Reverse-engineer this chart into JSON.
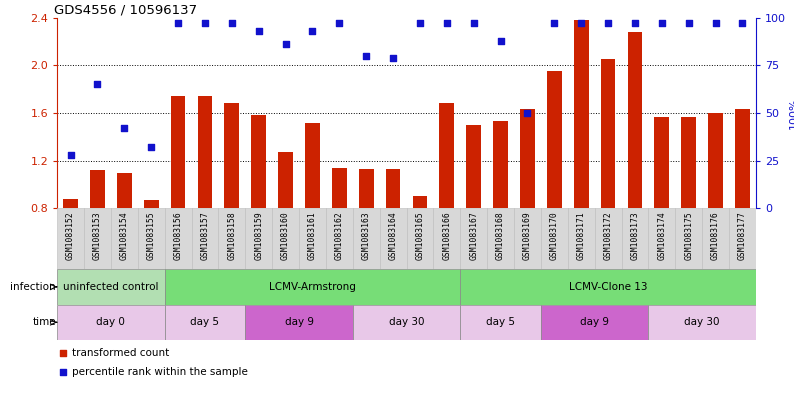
{
  "title": "GDS4556 / 10596137",
  "samples": [
    "GSM1083152",
    "GSM1083153",
    "GSM1083154",
    "GSM1083155",
    "GSM1083156",
    "GSM1083157",
    "GSM1083158",
    "GSM1083159",
    "GSM1083160",
    "GSM1083161",
    "GSM1083162",
    "GSM1083163",
    "GSM1083164",
    "GSM1083165",
    "GSM1083166",
    "GSM1083167",
    "GSM1083168",
    "GSM1083169",
    "GSM1083170",
    "GSM1083171",
    "GSM1083172",
    "GSM1083173",
    "GSM1083174",
    "GSM1083175",
    "GSM1083176",
    "GSM1083177"
  ],
  "bar_values": [
    0.88,
    1.12,
    1.1,
    0.87,
    1.74,
    1.74,
    1.68,
    1.58,
    1.27,
    1.52,
    1.14,
    1.13,
    1.13,
    0.9,
    1.68,
    1.5,
    1.53,
    1.63,
    1.95,
    2.38,
    2.05,
    2.28,
    1.57,
    1.57,
    1.6,
    1.63
  ],
  "scatter_values_pct": [
    28,
    65,
    42,
    32,
    97,
    97,
    97,
    93,
    86,
    93,
    97,
    80,
    79,
    97,
    97,
    97,
    88,
    50,
    97,
    97,
    97,
    97,
    97,
    97,
    97,
    97
  ],
  "ylim_left": [
    0.8,
    2.4
  ],
  "ylim_right": [
    0,
    100
  ],
  "yticks_left": [
    0.8,
    1.2,
    1.6,
    2.0,
    2.4
  ],
  "yticks_right": [
    0,
    25,
    50,
    75,
    100
  ],
  "bar_color": "#cc2200",
  "scatter_color": "#1111cc",
  "infection_groups": [
    {
      "label": "uninfected control",
      "start": 0,
      "end": 4,
      "color": "#b2dfb2"
    },
    {
      "label": "LCMV-Armstrong",
      "start": 4,
      "end": 15,
      "color": "#77dd77"
    },
    {
      "label": "LCMV-Clone 13",
      "start": 15,
      "end": 26,
      "color": "#77dd77"
    }
  ],
  "time_groups": [
    {
      "label": "day 0",
      "start": 0,
      "end": 4,
      "color": "#e8c8e8"
    },
    {
      "label": "day 5",
      "start": 4,
      "end": 7,
      "color": "#e8c8e8"
    },
    {
      "label": "day 9",
      "start": 7,
      "end": 11,
      "color": "#cc66cc"
    },
    {
      "label": "day 30",
      "start": 11,
      "end": 15,
      "color": "#e8c8e8"
    },
    {
      "label": "day 5",
      "start": 15,
      "end": 18,
      "color": "#e8c8e8"
    },
    {
      "label": "day 9",
      "start": 18,
      "end": 22,
      "color": "#cc66cc"
    },
    {
      "label": "day 30",
      "start": 22,
      "end": 26,
      "color": "#e8c8e8"
    }
  ]
}
